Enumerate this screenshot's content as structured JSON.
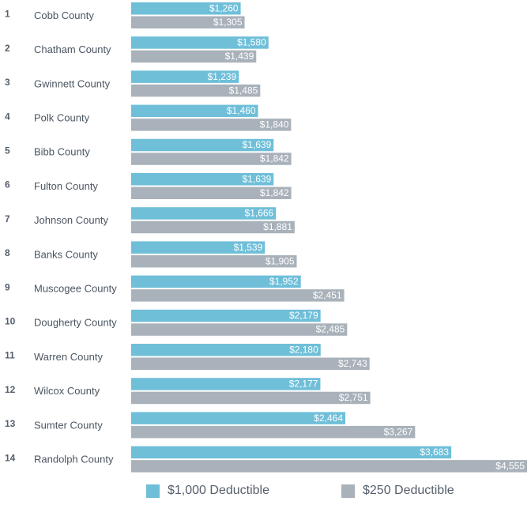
{
  "chart_data": {
    "type": "bar",
    "orientation": "horizontal",
    "ranks": [
      "1",
      "2",
      "3",
      "4",
      "5",
      "6",
      "7",
      "8",
      "9",
      "10",
      "11",
      "12",
      "13",
      "14"
    ],
    "categories": [
      "Cobb County",
      "Chatham County",
      "Gwinnett County",
      "Polk County",
      "Bibb County",
      "Fulton County",
      "Johnson County",
      "Banks County",
      "Muscogee County",
      "Dougherty County",
      "Warren County",
      "Wilcox County",
      "Sumter County",
      "Randolph County"
    ],
    "series": [
      {
        "name": "$1,000 Deductible",
        "color": "#6fbfd9",
        "values": [
          1260,
          1580,
          1239,
          1460,
          1639,
          1639,
          1666,
          1539,
          1952,
          2179,
          2180,
          2177,
          2464,
          3683
        ],
        "labels": [
          "$1,260",
          "$1,580",
          "$1,239",
          "$1,460",
          "$1,639",
          "$1,639",
          "$1,666",
          "$1,539",
          "$1,952",
          "$2,179",
          "$2,180",
          "$2,177",
          "$2,464",
          "$3,683"
        ]
      },
      {
        "name": "$250 Deductible",
        "color": "#a9b2ba",
        "values": [
          1305,
          1439,
          1485,
          1840,
          1842,
          1842,
          1881,
          1905,
          2451,
          2485,
          2743,
          2751,
          3267,
          4555
        ],
        "labels": [
          "$1,305",
          "$1,439",
          "$1,485",
          "$1,840",
          "$1,842",
          "$1,842",
          "$1,881",
          "$1,905",
          "$2,451",
          "$2,485",
          "$2,743",
          "$2,751",
          "$3,267",
          "$4,555"
        ]
      }
    ],
    "xlim": [
      0,
      4555
    ],
    "grid": false,
    "legend_position": "bottom"
  }
}
